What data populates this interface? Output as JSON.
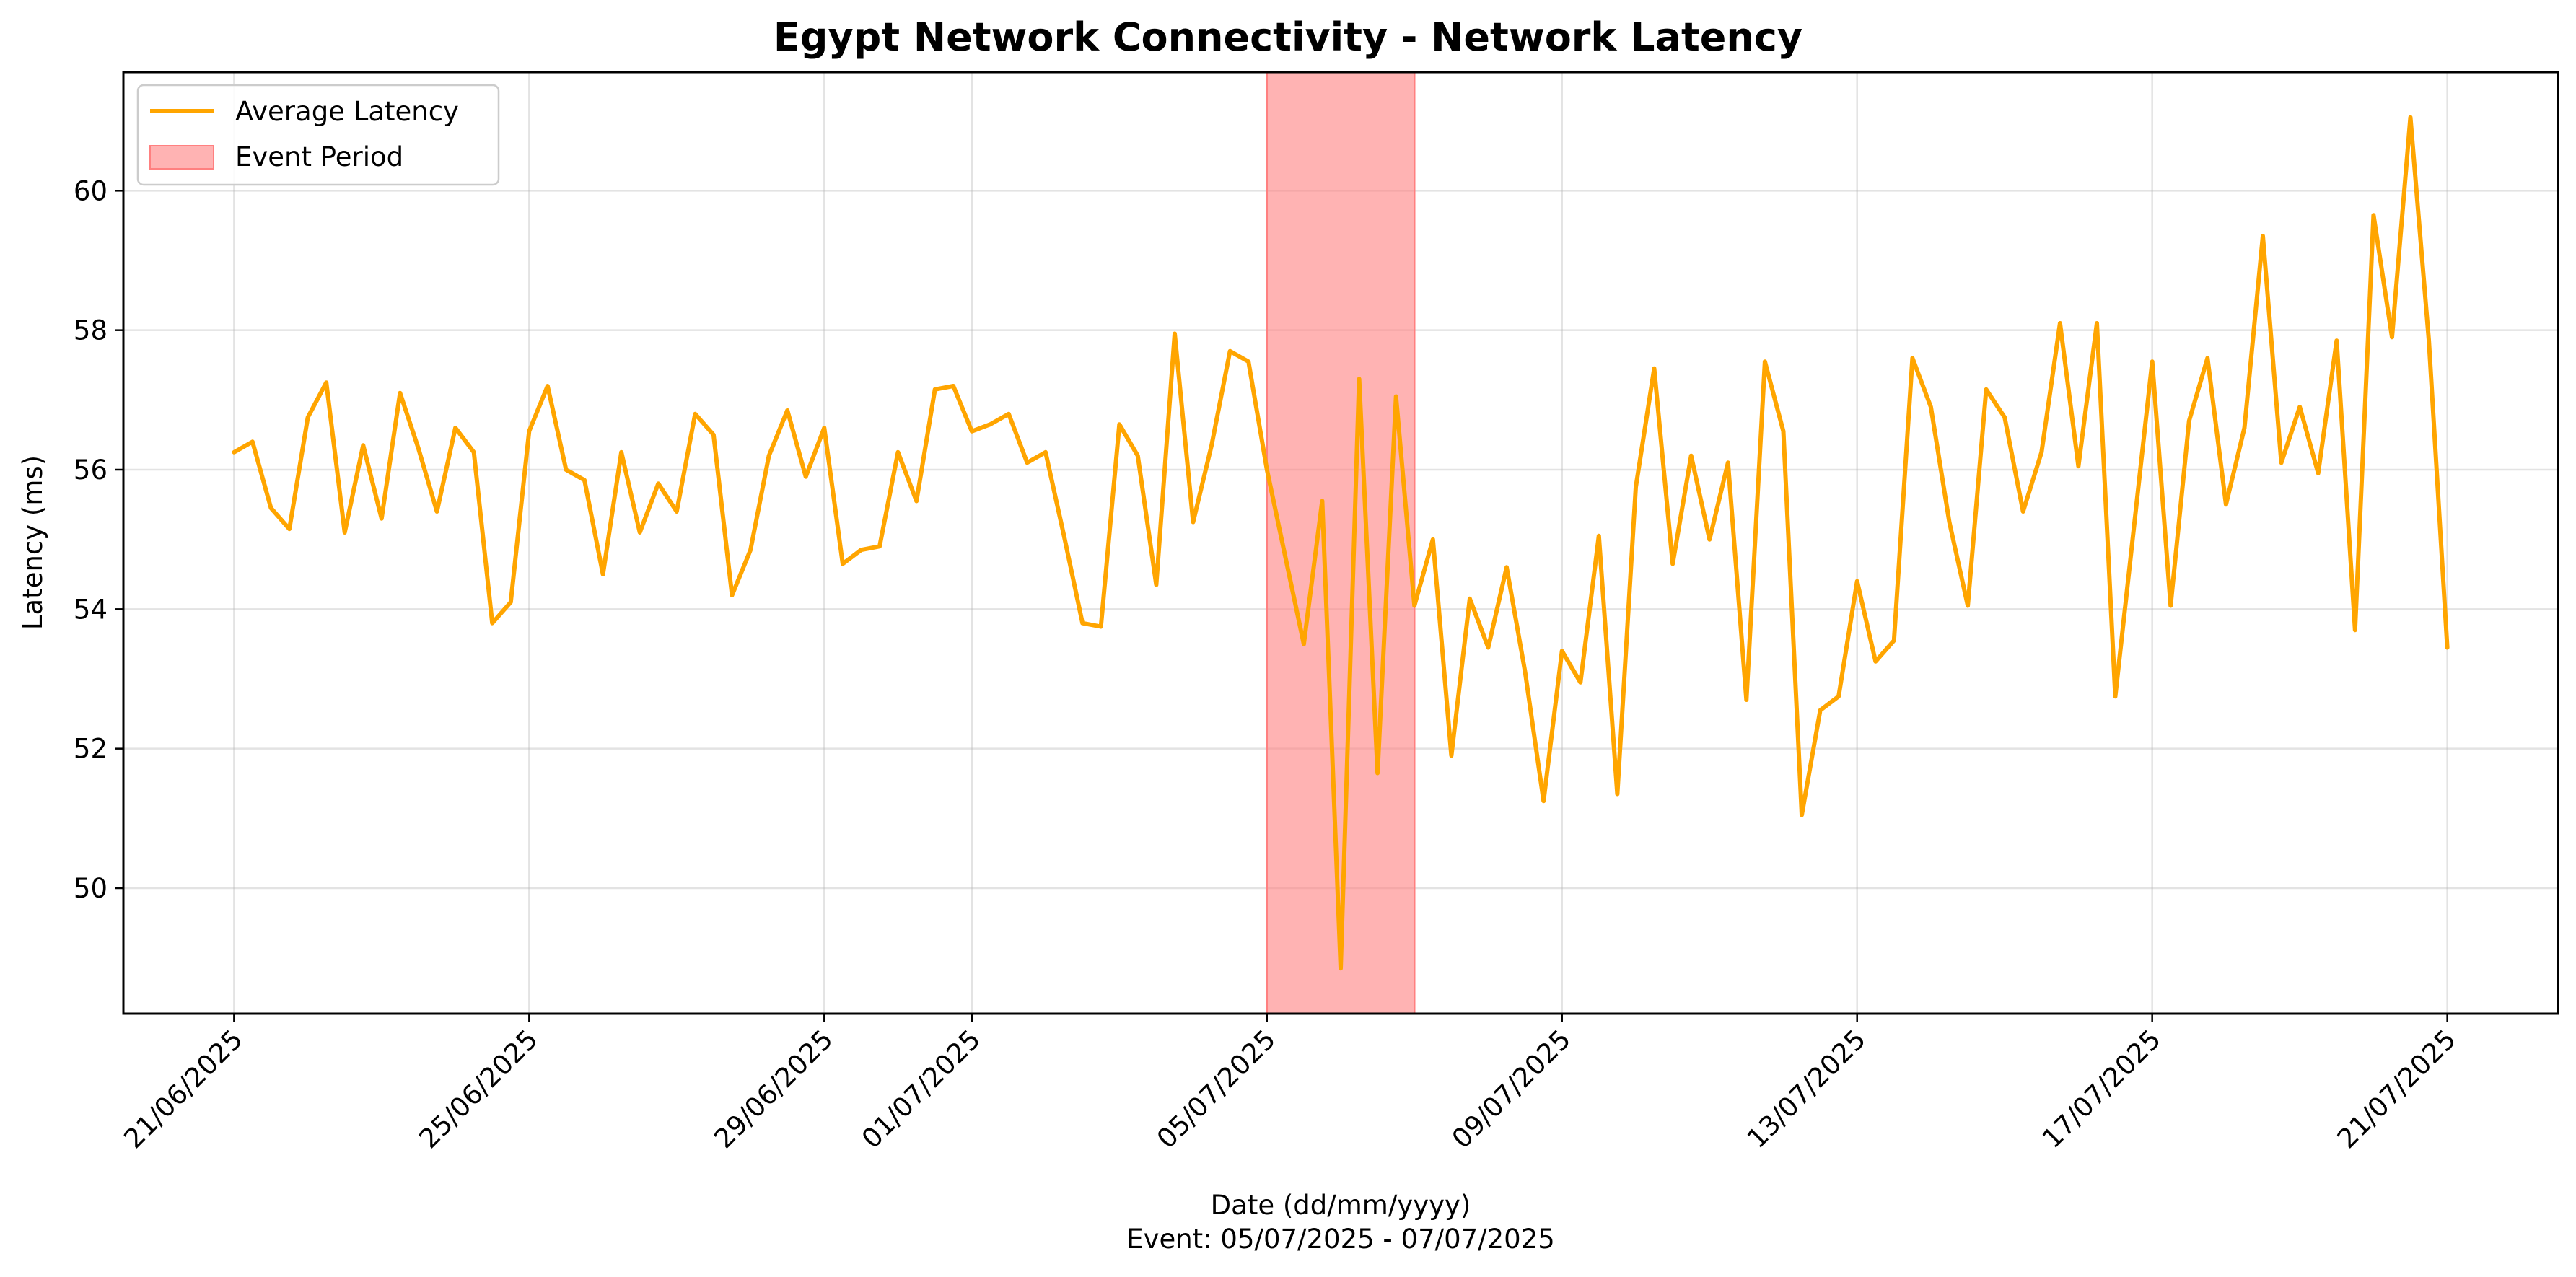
{
  "chart_data": {
    "type": "line",
    "title": "Egypt Network Connectivity - Network Latency",
    "xlabel": "Date (dd/mm/yyyy)",
    "xlabel_note": "Event: 05/07/2025 - 07/07/2025",
    "ylabel": "Latency (ms)",
    "x_start": "21/06/2025",
    "x_end": "21/07/2025",
    "ylim": [
      48.2,
      61.7
    ],
    "yticks": [
      50,
      52,
      54,
      56,
      58,
      60
    ],
    "xticks": [
      "21/06/2025",
      "25/06/2025",
      "29/06/2025",
      "01/07/2025",
      "05/07/2025",
      "09/07/2025",
      "13/07/2025",
      "17/07/2025",
      "21/07/2025"
    ],
    "grid": true,
    "legend": {
      "position": "top-left",
      "entries": [
        {
          "label": "Average Latency",
          "kind": "line",
          "color": "#FFA500"
        },
        {
          "label": "Event Period",
          "kind": "patch",
          "color": "#FF8080"
        }
      ]
    },
    "event_period": {
      "label": "Event Period",
      "start": "05/07/2025",
      "end": "07/07/2025",
      "color": "#FF8080"
    },
    "series": [
      {
        "name": "Average Latency",
        "color": "#FFA500",
        "x": [
          "21/06/2025 00:00",
          "21/06/2025 06:00",
          "21/06/2025 12:00",
          "21/06/2025 18:00",
          "22/06/2025 00:00",
          "22/06/2025 06:00",
          "22/06/2025 12:00",
          "22/06/2025 18:00",
          "23/06/2025 00:00",
          "23/06/2025 06:00",
          "23/06/2025 12:00",
          "23/06/2025 18:00",
          "24/06/2025 00:00",
          "24/06/2025 06:00",
          "24/06/2025 12:00",
          "24/06/2025 18:00",
          "25/06/2025 00:00",
          "25/06/2025 06:00",
          "25/06/2025 12:00",
          "25/06/2025 18:00",
          "26/06/2025 00:00",
          "26/06/2025 06:00",
          "26/06/2025 12:00",
          "26/06/2025 18:00",
          "27/06/2025 00:00",
          "27/06/2025 06:00",
          "27/06/2025 12:00",
          "27/06/2025 18:00",
          "28/06/2025 00:00",
          "28/06/2025 06:00",
          "28/06/2025 12:00",
          "28/06/2025 18:00",
          "29/06/2025 00:00",
          "29/06/2025 06:00",
          "29/06/2025 12:00",
          "29/06/2025 18:00",
          "30/06/2025 00:00",
          "30/06/2025 06:00",
          "30/06/2025 12:00",
          "30/06/2025 18:00",
          "01/07/2025 00:00",
          "01/07/2025 06:00",
          "01/07/2025 12:00",
          "01/07/2025 18:00",
          "02/07/2025 00:00",
          "02/07/2025 06:00",
          "02/07/2025 12:00",
          "02/07/2025 18:00",
          "03/07/2025 00:00",
          "03/07/2025 06:00",
          "03/07/2025 12:00",
          "03/07/2025 18:00",
          "04/07/2025 00:00",
          "04/07/2025 06:00",
          "04/07/2025 12:00",
          "04/07/2025 18:00",
          "05/07/2025 00:00",
          "05/07/2025 06:00",
          "05/07/2025 12:00",
          "05/07/2025 18:00",
          "06/07/2025 00:00",
          "06/07/2025 06:00",
          "06/07/2025 12:00",
          "06/07/2025 18:00",
          "07/07/2025 00:00",
          "07/07/2025 06:00",
          "07/07/2025 12:00",
          "07/07/2025 18:00",
          "08/07/2025 00:00",
          "08/07/2025 06:00",
          "08/07/2025 12:00",
          "08/07/2025 18:00",
          "09/07/2025 00:00",
          "09/07/2025 06:00",
          "09/07/2025 12:00",
          "09/07/2025 18:00",
          "10/07/2025 00:00",
          "10/07/2025 06:00",
          "10/07/2025 12:00",
          "10/07/2025 18:00",
          "11/07/2025 00:00",
          "11/07/2025 06:00",
          "11/07/2025 12:00",
          "11/07/2025 18:00",
          "12/07/2025 00:00",
          "12/07/2025 06:00",
          "12/07/2025 12:00",
          "12/07/2025 18:00",
          "13/07/2025 00:00",
          "13/07/2025 06:00",
          "13/07/2025 12:00",
          "13/07/2025 18:00",
          "14/07/2025 00:00",
          "14/07/2025 06:00",
          "14/07/2025 12:00",
          "14/07/2025 18:00",
          "15/07/2025 00:00",
          "15/07/2025 06:00",
          "15/07/2025 12:00",
          "15/07/2025 18:00",
          "16/07/2025 00:00",
          "16/07/2025 06:00",
          "16/07/2025 12:00",
          "16/07/2025 18:00",
          "17/07/2025 00:00",
          "17/07/2025 06:00",
          "17/07/2025 12:00",
          "17/07/2025 18:00",
          "18/07/2025 00:00",
          "18/07/2025 06:00",
          "18/07/2025 12:00",
          "18/07/2025 18:00",
          "19/07/2025 00:00",
          "19/07/2025 06:00",
          "19/07/2025 12:00",
          "19/07/2025 18:00",
          "20/07/2025 00:00",
          "20/07/2025 06:00",
          "20/07/2025 12:00",
          "20/07/2025 18:00",
          "21/07/2025 00:00"
        ],
        "values": [
          56.25,
          56.4,
          55.45,
          55.15,
          56.75,
          57.25,
          55.1,
          56.35,
          55.3,
          57.1,
          56.3,
          55.4,
          56.6,
          56.25,
          53.8,
          54.1,
          56.55,
          57.2,
          56.0,
          55.85,
          54.5,
          56.25,
          55.1,
          55.8,
          55.4,
          56.8,
          56.5,
          54.2,
          54.85,
          56.2,
          56.85,
          55.9,
          56.6,
          54.65,
          54.85,
          54.9,
          56.25,
          55.55,
          57.15,
          57.2,
          56.55,
          56.65,
          56.8,
          56.1,
          56.25,
          55.05,
          53.8,
          53.75,
          56.65,
          56.2,
          54.35,
          57.95,
          55.25,
          56.35,
          57.7,
          57.55,
          56.0,
          54.75,
          53.5,
          55.55,
          48.85,
          57.3,
          51.65,
          57.05,
          54.05,
          55.0,
          51.9,
          54.15,
          53.45,
          54.6,
          53.1,
          51.25,
          53.4,
          52.95,
          55.05,
          51.35,
          55.75,
          57.45,
          54.65,
          56.2,
          55.0,
          56.1,
          52.7,
          57.55,
          56.55,
          51.05,
          52.55,
          52.75,
          54.4,
          53.25,
          53.55,
          57.6,
          56.9,
          55.25,
          54.05,
          57.15,
          56.75,
          55.4,
          56.25,
          58.1,
          56.05,
          58.1,
          52.75,
          55.15,
          57.55,
          54.05,
          56.7,
          57.6,
          55.5,
          56.6,
          59.35,
          56.1,
          56.9,
          55.95,
          57.85,
          53.7,
          59.65,
          57.9,
          61.05,
          57.85,
          53.45
        ]
      }
    ]
  }
}
